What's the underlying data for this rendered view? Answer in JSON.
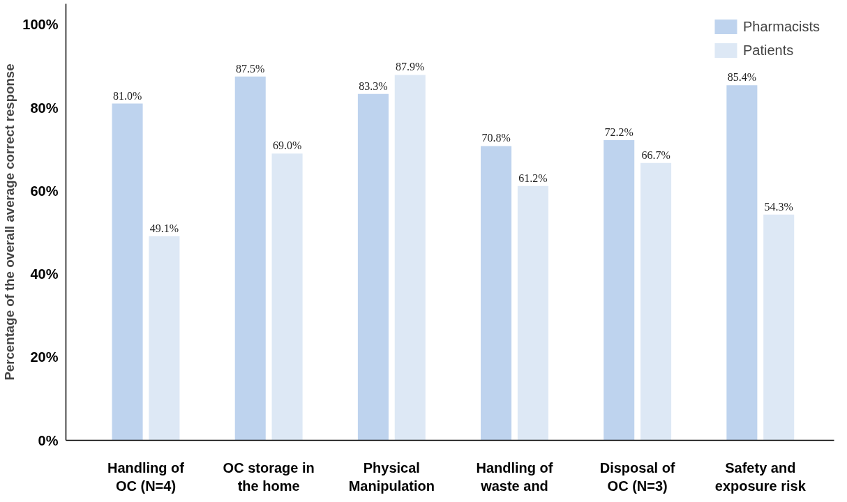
{
  "chart_data": {
    "type": "bar",
    "ylabel": "Percentage of the overall average correct response",
    "categories": [
      "Handling of\nOC (N=4)",
      "OC storage in\nthe home",
      "Physical\nManipulation",
      "Handling of\nwaste and",
      "Disposal of\nOC (N=3)",
      "Safety and\nexposure risk"
    ],
    "series": [
      {
        "name": "Pharmacists",
        "color": "#bed3ee",
        "values": [
          81.0,
          87.5,
          83.3,
          70.8,
          72.2,
          85.4
        ],
        "value_labels": [
          "81.0%",
          "87.5%",
          "83.3%",
          "70.8%",
          "72.2%",
          "85.4%"
        ]
      },
      {
        "name": "Patients",
        "color": "#dde8f5",
        "values": [
          49.1,
          69.0,
          87.9,
          61.2,
          66.7,
          54.3
        ],
        "value_labels": [
          "49.1%",
          "69.0%",
          "87.9%",
          "61.2%",
          "66.7%",
          "54.3%"
        ]
      }
    ],
    "ylim": [
      0,
      105
    ],
    "yticks": [
      {
        "value": 0,
        "label": "0%"
      },
      {
        "value": 20,
        "label": "20%"
      },
      {
        "value": 40,
        "label": "40%"
      },
      {
        "value": 60,
        "label": "60%"
      },
      {
        "value": 80,
        "label": "80%"
      },
      {
        "value": 100,
        "label": "100%"
      }
    ],
    "grid": false,
    "legend": "top right"
  }
}
